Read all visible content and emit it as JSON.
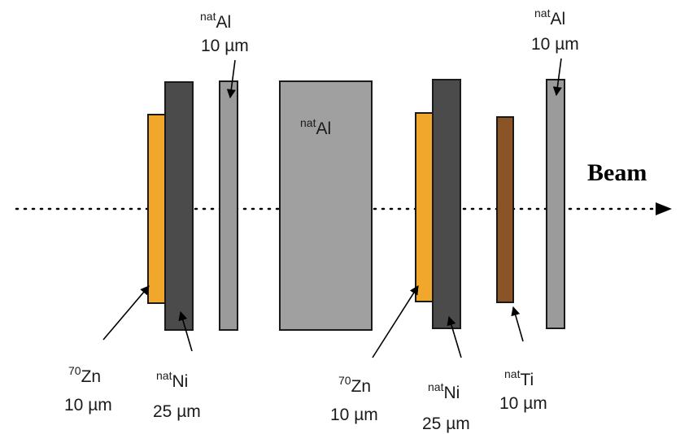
{
  "beam_label": "Beam",
  "colors": {
    "zn": "#f0a72c",
    "ni": "#4b4b4b",
    "al_foil": "#9b9b9b",
    "al_block": "#a0a0a0",
    "ti": "#8a5427",
    "outline": "#1a1a1a"
  },
  "labels": {
    "al_top_left": {
      "sup": "nat",
      "symbol": "Al",
      "thickness": "10 µm"
    },
    "al_block": {
      "sup": "nat",
      "symbol": "Al"
    },
    "al_top_right": {
      "sup": "nat",
      "symbol": "Al",
      "thickness": "10 µm"
    },
    "zn_left": {
      "sup": "70",
      "symbol": "Zn",
      "thickness": "10 µm"
    },
    "ni_left": {
      "sup": "nat",
      "symbol": "Ni",
      "thickness": "25 µm"
    },
    "zn_right": {
      "sup": "70",
      "symbol": "Zn",
      "thickness": "10 µm"
    },
    "ni_right": {
      "sup": "nat",
      "symbol": "Ni",
      "thickness": "25 µm"
    },
    "ti_right": {
      "sup": "nat",
      "symbol": "Ti",
      "thickness": "10 µm"
    }
  }
}
